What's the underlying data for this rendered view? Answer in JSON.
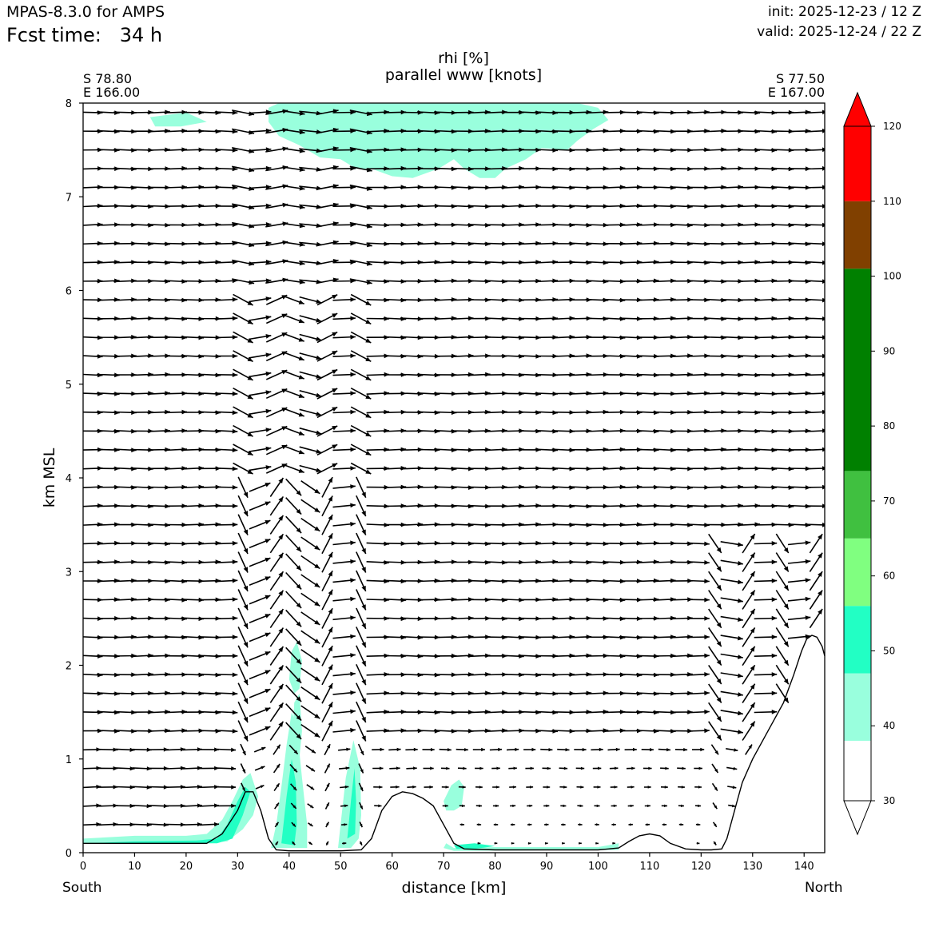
{
  "header": {
    "model": "MPAS-8.3.0 for AMPS",
    "fcst_label": "Fcst time:",
    "fcst_value": "34 h",
    "init": "init: 2025-12-23 / 12 Z",
    "valid": "valid: 2025-12-24 / 22 Z"
  },
  "chart_data": {
    "type": "heatmap",
    "title": "rhi [%]",
    "subtitle": "parallel www [knots]",
    "xlabel": "distance [km]",
    "ylabel": "km MSL",
    "xlim": [
      0,
      144
    ],
    "ylim": [
      0,
      8
    ],
    "x_ticks": [
      "0",
      "10",
      "20",
      "30",
      "40",
      "50",
      "60",
      "70",
      "80",
      "90",
      "100",
      "110",
      "120",
      "130",
      "140"
    ],
    "y_ticks": [
      "0",
      "1",
      "2",
      "3",
      "4",
      "5",
      "6",
      "7",
      "8"
    ],
    "start_point": {
      "lat": "S 78.80",
      "lon": "E 166.00",
      "side": "South"
    },
    "end_point": {
      "lat": "S 77.50",
      "lon": "E 167.00",
      "side": "North"
    },
    "colorbar": {
      "levels": [
        30,
        40,
        50,
        60,
        70,
        80,
        90,
        100,
        110,
        120
      ],
      "tick_labels": [
        "30",
        "40",
        "50",
        "60",
        "70",
        "80",
        "90",
        "100",
        "110",
        "120"
      ],
      "bands": [
        {
          "from": 30,
          "to": 38,
          "color": "#ffffff"
        },
        {
          "from": 38,
          "to": 47,
          "color": "#99ffdd"
        },
        {
          "from": 47,
          "to": 56,
          "color": "#22ffc4"
        },
        {
          "from": 56,
          "to": 65,
          "color": "#80ff80"
        },
        {
          "from": 65,
          "to": 74,
          "color": "#40c040"
        },
        {
          "from": 74,
          "to": 101,
          "color": "#008000"
        },
        {
          "from": 101,
          "to": 110,
          "color": "#804000"
        },
        {
          "from": 110,
          "to": 120,
          "color": "#ff0000"
        }
      ],
      "extend": "both"
    },
    "terrain": {
      "x": [
        0,
        24,
        27,
        30,
        31.5,
        33,
        34.5,
        36,
        37.5,
        40,
        45,
        50,
        54,
        56,
        58,
        60,
        62,
        64,
        66,
        68,
        70,
        72,
        74,
        80,
        90,
        100,
        104,
        106,
        108,
        110,
        112,
        114,
        117,
        120,
        122,
        124,
        125,
        126,
        127,
        128,
        130,
        133,
        136,
        138,
        139.5,
        140.5,
        141.5,
        142.5,
        143.5,
        144
      ],
      "height": [
        0.1,
        0.1,
        0.2,
        0.45,
        0.65,
        0.65,
        0.45,
        0.15,
        0.03,
        0.02,
        0.02,
        0.02,
        0.03,
        0.15,
        0.45,
        0.6,
        0.65,
        0.63,
        0.58,
        0.5,
        0.3,
        0.1,
        0.04,
        0.03,
        0.03,
        0.03,
        0.05,
        0.12,
        0.18,
        0.2,
        0.18,
        0.1,
        0.04,
        0.03,
        0.03,
        0.04,
        0.15,
        0.35,
        0.55,
        0.75,
        1.0,
        1.3,
        1.6,
        1.9,
        2.15,
        2.28,
        2.32,
        2.3,
        2.2,
        2.1
      ]
    },
    "rhi_regions": [
      {
        "level": "40-50",
        "polygon": [
          [
            0,
            0.15
          ],
          [
            10,
            0.18
          ],
          [
            20,
            0.18
          ],
          [
            24,
            0.2
          ],
          [
            27,
            0.35
          ],
          [
            29,
            0.55
          ],
          [
            31,
            0.78
          ],
          [
            32.5,
            0.85
          ],
          [
            34,
            0.6
          ],
          [
            33,
            0.4
          ],
          [
            31,
            0.25
          ],
          [
            28,
            0.12
          ],
          [
            24,
            0.1
          ],
          [
            0,
            0.1
          ]
        ]
      },
      {
        "level": "50-60",
        "polygon": [
          [
            0,
            0.1
          ],
          [
            10,
            0.12
          ],
          [
            22,
            0.13
          ],
          [
            26,
            0.15
          ],
          [
            28,
            0.3
          ],
          [
            30,
            0.55
          ],
          [
            31.5,
            0.7
          ],
          [
            32.5,
            0.65
          ],
          [
            31,
            0.4
          ],
          [
            29,
            0.15
          ],
          [
            26,
            0.1
          ]
        ]
      },
      {
        "level": "40-50",
        "polygon": [
          [
            36.5,
            0.05
          ],
          [
            37.5,
            0.3
          ],
          [
            38.5,
            0.7
          ],
          [
            39.5,
            1.15
          ],
          [
            40.5,
            1.5
          ],
          [
            41.5,
            1.35
          ],
          [
            42.5,
            0.8
          ],
          [
            43.5,
            0.3
          ],
          [
            43.5,
            0.05
          ]
        ]
      },
      {
        "level": "40-50",
        "polygon": [
          [
            40.5,
            1.05
          ],
          [
            41,
            1.6
          ],
          [
            42,
            1.7
          ],
          [
            42.5,
            1.3
          ],
          [
            41.8,
            0.9
          ]
        ]
      },
      {
        "level": "40-50",
        "polygon": [
          [
            40,
            1.85
          ],
          [
            40.5,
            2.15
          ],
          [
            41.5,
            2.25
          ],
          [
            42.5,
            2.05
          ],
          [
            42,
            1.75
          ],
          [
            41,
            1.7
          ]
        ]
      },
      {
        "level": "50-60",
        "polygon": [
          [
            38.5,
            0.1
          ],
          [
            39.5,
            0.6
          ],
          [
            40.5,
            1.0
          ],
          [
            41.3,
            0.75
          ],
          [
            41.5,
            0.3
          ],
          [
            41,
            0.08
          ]
        ]
      },
      {
        "level": "40-50",
        "polygon": [
          [
            49.5,
            0.05
          ],
          [
            50,
            0.3
          ],
          [
            51,
            0.8
          ],
          [
            52.5,
            1.2
          ],
          [
            53.8,
            0.9
          ],
          [
            54,
            0.4
          ],
          [
            53.5,
            0.15
          ],
          [
            52,
            0.05
          ]
        ]
      },
      {
        "level": "50-60",
        "polygon": [
          [
            51.3,
            0.15
          ],
          [
            52,
            0.55
          ],
          [
            52.7,
            0.9
          ],
          [
            53,
            0.55
          ],
          [
            52.8,
            0.2
          ]
        ]
      },
      {
        "level": "40-50",
        "polygon": [
          [
            70,
            0.55
          ],
          [
            71.5,
            0.72
          ],
          [
            73,
            0.78
          ],
          [
            74,
            0.7
          ],
          [
            73.5,
            0.5
          ],
          [
            72,
            0.45
          ],
          [
            70.5,
            0.45
          ]
        ]
      },
      {
        "level": "40-50",
        "polygon": [
          [
            70.5,
            0.1
          ],
          [
            72,
            0.05
          ],
          [
            80,
            0.06
          ],
          [
            92,
            0.06
          ],
          [
            100,
            0.06
          ],
          [
            104,
            0.1
          ],
          [
            104,
            0.03
          ],
          [
            72,
            0.02
          ],
          [
            70,
            0.05
          ]
        ]
      },
      {
        "level": "50-60",
        "polygon": [
          [
            72,
            0.08
          ],
          [
            76,
            0.1
          ],
          [
            80,
            0.07
          ],
          [
            76,
            0.04
          ],
          [
            72.5,
            0.04
          ]
        ]
      },
      {
        "level": "40-50",
        "polygon": [
          [
            13,
            7.85
          ],
          [
            20,
            7.9
          ],
          [
            24,
            7.8
          ],
          [
            19,
            7.75
          ],
          [
            14,
            7.75
          ]
        ]
      },
      {
        "level": "40-50",
        "polygon": [
          [
            36,
            7.95
          ],
          [
            38,
            8.0
          ],
          [
            96,
            8.0
          ],
          [
            100,
            7.95
          ],
          [
            102,
            7.82
          ],
          [
            99,
            7.72
          ],
          [
            96,
            7.6
          ],
          [
            94,
            7.5
          ],
          [
            89,
            7.52
          ],
          [
            86,
            7.4
          ],
          [
            82,
            7.3
          ],
          [
            80,
            7.2
          ],
          [
            77,
            7.2
          ],
          [
            74,
            7.3
          ],
          [
            72,
            7.4
          ],
          [
            69,
            7.3
          ],
          [
            64,
            7.2
          ],
          [
            60,
            7.22
          ],
          [
            56,
            7.3
          ],
          [
            53,
            7.3
          ],
          [
            50,
            7.4
          ],
          [
            46,
            7.42
          ],
          [
            42,
            7.55
          ],
          [
            38,
            7.65
          ],
          [
            36,
            7.8
          ]
        ]
      }
    ],
    "wind_field_description": "Wind vectors parallel to the section in knots; mostly eastward flow aloft, strong alternating updraft/downdraft bands near 30-55 km and 122-144 km.",
    "legend_placement": "colorbar-right"
  }
}
